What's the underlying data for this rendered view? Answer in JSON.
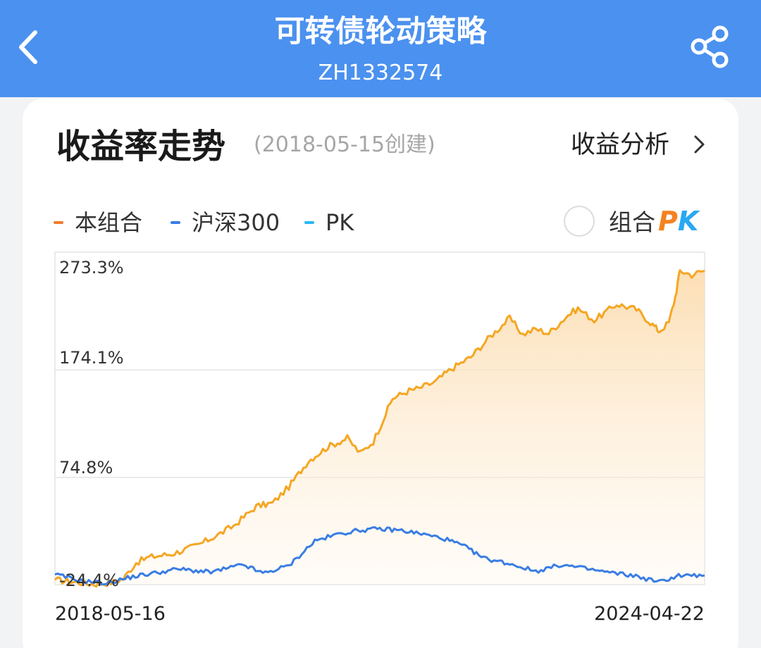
{
  "header": {
    "back_icon": "chevron-left-icon",
    "title": "可转债轮动策略",
    "subtitle": "ZH1332574",
    "share_icon": "share-icon"
  },
  "section": {
    "title": "收益率走势",
    "created": "(2018-05-15创建)",
    "analysis_link": "收益分析",
    "analysis_icon": "chevron-right-icon"
  },
  "legend": [
    {
      "label": "本组合",
      "color": "#f07c2e"
    },
    {
      "label": "沪深300",
      "color": "#3a7de4"
    },
    {
      "label": "PK",
      "color": "#2ab8f2"
    }
  ],
  "pk_toggle": {
    "label": "组合",
    "badge_p": "P",
    "badge_k": "K",
    "badge_p_color": "#f5821f",
    "badge_k_color": "#2aa8f2",
    "checked": false
  },
  "chart_data": {
    "type": "line",
    "x_start": "2018-05-16",
    "x_end": "2024-04-22",
    "y_ticks": [
      "273.3%",
      "174.1%",
      "74.8%",
      "-24.4%"
    ],
    "y_tick_values": [
      273.3,
      174.1,
      74.8,
      -24.4
    ],
    "ylim": [
      -24.4,
      273.3
    ],
    "grid": true,
    "series": [
      {
        "name": "本组合",
        "color": "#f5a623",
        "fill": "area",
        "points": [
          [
            0.0,
            -20
          ],
          [
            0.03,
            -22
          ],
          [
            0.06,
            -24
          ],
          [
            0.09,
            -22
          ],
          [
            0.105,
            -19
          ],
          [
            0.125,
            -4
          ],
          [
            0.145,
            1
          ],
          [
            0.18,
            4
          ],
          [
            0.22,
            12
          ],
          [
            0.255,
            23
          ],
          [
            0.275,
            30
          ],
          [
            0.31,
            48
          ],
          [
            0.335,
            51
          ],
          [
            0.36,
            66
          ],
          [
            0.39,
            90
          ],
          [
            0.42,
            103
          ],
          [
            0.45,
            111
          ],
          [
            0.47,
            97
          ],
          [
            0.49,
            108
          ],
          [
            0.52,
            148
          ],
          [
            0.545,
            155
          ],
          [
            0.56,
            157
          ],
          [
            0.585,
            163
          ],
          [
            0.61,
            175
          ],
          [
            0.64,
            186
          ],
          [
            0.67,
            205
          ],
          [
            0.7,
            222
          ],
          [
            0.72,
            207
          ],
          [
            0.74,
            212
          ],
          [
            0.76,
            208
          ],
          [
            0.79,
            225
          ],
          [
            0.805,
            231
          ],
          [
            0.83,
            220
          ],
          [
            0.865,
            235
          ],
          [
            0.895,
            230
          ],
          [
            0.92,
            216
          ],
          [
            0.93,
            210
          ],
          [
            0.945,
            218
          ],
          [
            0.955,
            242
          ],
          [
            0.962,
            266
          ],
          [
            0.98,
            262
          ],
          [
            1.0,
            266
          ]
        ]
      },
      {
        "name": "沪深300",
        "color": "#3a7de4",
        "points": [
          [
            0.0,
            -15
          ],
          [
            0.04,
            -21
          ],
          [
            0.08,
            -23
          ],
          [
            0.12,
            -17
          ],
          [
            0.15,
            -14
          ],
          [
            0.19,
            -10
          ],
          [
            0.24,
            -13
          ],
          [
            0.29,
            -6
          ],
          [
            0.32,
            -14
          ],
          [
            0.36,
            -7
          ],
          [
            0.4,
            16
          ],
          [
            0.44,
            23
          ],
          [
            0.47,
            26
          ],
          [
            0.5,
            27
          ],
          [
            0.53,
            26
          ],
          [
            0.56,
            23
          ],
          [
            0.6,
            18
          ],
          [
            0.63,
            11
          ],
          [
            0.66,
            0
          ],
          [
            0.7,
            -5
          ],
          [
            0.74,
            -12
          ],
          [
            0.78,
            -6
          ],
          [
            0.82,
            -10
          ],
          [
            0.85,
            -13
          ],
          [
            0.89,
            -16
          ],
          [
            0.93,
            -22
          ],
          [
            0.96,
            -16
          ],
          [
            1.0,
            -16
          ]
        ]
      }
    ]
  }
}
